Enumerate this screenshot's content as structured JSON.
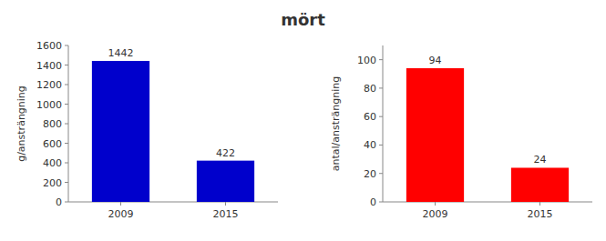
{
  "title": "mört",
  "chart_data": [
    {
      "type": "bar",
      "categories": [
        "2009",
        "2015"
      ],
      "values": [
        1442,
        422
      ],
      "color": "#0000cc",
      "ylabel": "g/ansträngning",
      "ylim": [
        0,
        1600
      ],
      "yticks": [
        0,
        200,
        400,
        600,
        800,
        1000,
        1200,
        1400,
        1600
      ],
      "data_labels": true
    },
    {
      "type": "bar",
      "categories": [
        "2009",
        "2015"
      ],
      "values": [
        94,
        24
      ],
      "color": "#ff0000",
      "ylabel": "antal/ansträngning",
      "ylim": [
        0,
        110
      ],
      "yticks": [
        0,
        20,
        40,
        60,
        80,
        100
      ],
      "data_labels": true
    }
  ]
}
